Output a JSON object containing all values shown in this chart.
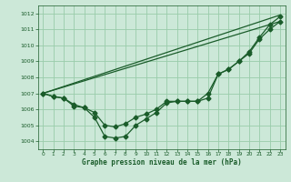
{
  "bg_color": "#cce8d8",
  "grid_color": "#99ccaa",
  "line_color": "#1a5c2a",
  "xlabel": "Graphe pression niveau de la mer (hPa)",
  "xlim": [
    -0.5,
    23.5
  ],
  "ylim": [
    1003.5,
    1012.5
  ],
  "yticks": [
    1004,
    1005,
    1006,
    1007,
    1008,
    1009,
    1010,
    1011,
    1012
  ],
  "xticks": [
    0,
    1,
    2,
    3,
    4,
    5,
    6,
    7,
    8,
    9,
    10,
    11,
    12,
    13,
    14,
    15,
    16,
    17,
    18,
    19,
    20,
    21,
    22,
    23
  ],
  "series": [
    {
      "x": [
        0,
        23
      ],
      "y": [
        1007.0,
        1011.9
      ],
      "marker": false,
      "lw": 0.9
    },
    {
      "x": [
        0,
        23
      ],
      "y": [
        1007.0,
        1011.5
      ],
      "marker": false,
      "lw": 0.9
    },
    {
      "x": [
        0,
        1,
        2,
        3,
        4,
        5,
        6,
        7,
        8,
        9,
        10,
        11,
        12,
        13,
        14,
        15,
        16,
        17,
        18,
        19,
        20,
        21,
        22,
        23
      ],
      "y": [
        1007.0,
        1006.8,
        1006.7,
        1006.2,
        1006.1,
        1005.5,
        1004.3,
        1004.2,
        1004.3,
        1005.0,
        1005.4,
        1005.8,
        1006.4,
        1006.5,
        1006.5,
        1006.5,
        1006.7,
        1008.2,
        1008.5,
        1009.0,
        1009.6,
        1010.5,
        1011.3,
        1011.8
      ],
      "marker": true,
      "lw": 0.9
    },
    {
      "x": [
        0,
        1,
        2,
        3,
        4,
        5,
        6,
        7,
        8,
        9,
        10,
        11,
        12,
        13,
        14,
        15,
        16,
        17,
        18,
        19,
        20,
        21,
        22,
        23
      ],
      "y": [
        1007.0,
        1006.8,
        1006.7,
        1006.3,
        1006.1,
        1005.8,
        1005.0,
        1004.9,
        1005.1,
        1005.5,
        1005.7,
        1006.0,
        1006.5,
        1006.5,
        1006.5,
        1006.5,
        1007.0,
        1008.2,
        1008.5,
        1009.0,
        1009.5,
        1010.4,
        1011.0,
        1011.5
      ],
      "marker": true,
      "lw": 0.9
    }
  ]
}
